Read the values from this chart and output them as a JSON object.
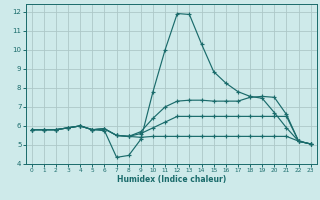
{
  "xlabel": "Humidex (Indice chaleur)",
  "xlim": [
    -0.5,
    23.5
  ],
  "ylim": [
    4,
    12.4
  ],
  "xticks": [
    0,
    1,
    2,
    3,
    4,
    5,
    6,
    7,
    8,
    9,
    10,
    11,
    12,
    13,
    14,
    15,
    16,
    17,
    18,
    19,
    20,
    21,
    22,
    23
  ],
  "yticks": [
    4,
    5,
    6,
    7,
    8,
    9,
    10,
    11,
    12
  ],
  "bg_color": "#ceeaea",
  "grid_color": "#adc8c8",
  "line_color": "#1a6b6b",
  "curves": [
    [
      5.8,
      5.8,
      5.8,
      5.9,
      6.0,
      5.8,
      5.75,
      4.35,
      4.45,
      5.3,
      7.8,
      10.0,
      11.9,
      11.85,
      10.3,
      8.85,
      8.25,
      7.8,
      7.55,
      7.45,
      6.7,
      5.9,
      5.2,
      5.05
    ],
    [
      5.8,
      5.8,
      5.8,
      5.9,
      6.0,
      5.8,
      5.85,
      5.5,
      5.45,
      5.7,
      6.4,
      7.0,
      7.3,
      7.35,
      7.35,
      7.3,
      7.3,
      7.3,
      7.5,
      7.55,
      7.5,
      6.6,
      5.2,
      5.05
    ],
    [
      5.8,
      5.8,
      5.8,
      5.9,
      6.0,
      5.8,
      5.85,
      5.5,
      5.45,
      5.6,
      5.9,
      6.2,
      6.5,
      6.5,
      6.5,
      6.5,
      6.5,
      6.5,
      6.5,
      6.5,
      6.5,
      6.5,
      5.2,
      5.05
    ],
    [
      5.8,
      5.8,
      5.8,
      5.9,
      6.0,
      5.8,
      5.85,
      5.5,
      5.45,
      5.4,
      5.45,
      5.45,
      5.45,
      5.45,
      5.45,
      5.45,
      5.45,
      5.45,
      5.45,
      5.45,
      5.45,
      5.45,
      5.2,
      5.05
    ]
  ]
}
